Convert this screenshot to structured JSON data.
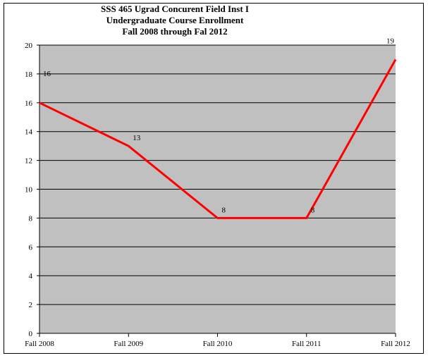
{
  "chart_data": {
    "type": "line",
    "title_lines": [
      "SSS 465 Ugrad Concurent Field Inst I",
      "Undergraduate Course Enrollment",
      "Fall 2008 through Fal 2012"
    ],
    "categories": [
      "Fall 2008",
      "Fall 2009",
      "Fall 2010",
      "Fall 2011",
      "Fall 2012"
    ],
    "series": [
      {
        "values": [
          16,
          13,
          8,
          8,
          19
        ],
        "color": "#ff0000"
      }
    ],
    "data_labels": [
      "16",
      "13",
      "8",
      "8",
      "19"
    ],
    "ylim": [
      0,
      20
    ],
    "yticks": [
      0,
      2,
      4,
      6,
      8,
      10,
      12,
      14,
      16,
      18,
      20
    ],
    "grid": true,
    "plot_background": "#c0c0c0",
    "xlabel": "",
    "ylabel": ""
  }
}
